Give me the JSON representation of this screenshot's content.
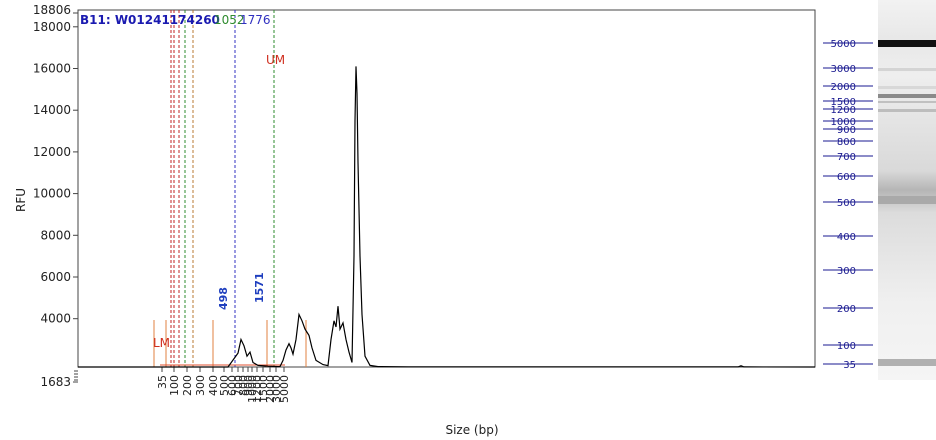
{
  "chart_data": {
    "type": "line",
    "sample_title": "B11: W01241174260",
    "ylabel": "RFU",
    "xlabel": "Size (bp)",
    "ylim": [
      1683,
      18806
    ],
    "yticks": [
      4000,
      6000,
      8000,
      10000,
      12000,
      14000,
      16000,
      18000
    ],
    "ylim_labels": [
      "1683",
      "18806"
    ],
    "xticks": [
      "35",
      "100",
      "200",
      "300",
      "400",
      "500",
      "600",
      "700",
      "800",
      "900",
      "1000",
      "1200",
      "1500",
      "2000",
      "3000",
      "5000"
    ],
    "size_markers": [
      {
        "label": "LM",
        "color": "#d03020"
      },
      {
        "label": "UM",
        "color": "#d03020"
      }
    ],
    "region_labels": [
      {
        "text": "1052",
        "color": "#2e8b2e"
      },
      {
        "text": "1776",
        "color": "#3030c0"
      }
    ],
    "peak_labels": [
      {
        "text": "498",
        "color": "#1f3fbf"
      },
      {
        "text": "1571",
        "color": "#1f3fbf"
      }
    ],
    "ladder_bands": [
      "5000",
      "3000",
      "2000",
      "1500",
      "1200",
      "1000",
      "900",
      "800",
      "700",
      "600",
      "500",
      "400",
      "300",
      "200",
      "100",
      "35"
    ],
    "trace": [
      [
        0,
        1683
      ],
      [
        150,
        1683
      ],
      [
        160,
        2350
      ],
      [
        163,
        3000
      ],
      [
        166,
        2700
      ],
      [
        169,
        2200
      ],
      [
        172,
        2400
      ],
      [
        175,
        1900
      ],
      [
        180,
        1760
      ],
      [
        190,
        1720
      ],
      [
        200,
        1700
      ],
      [
        202,
        1705
      ],
      [
        205,
        2000
      ],
      [
        208,
        2500
      ],
      [
        211,
        2800
      ],
      [
        213,
        2600
      ],
      [
        215,
        2300
      ],
      [
        218,
        3000
      ],
      [
        221,
        4200
      ],
      [
        224,
        3900
      ],
      [
        227,
        3500
      ],
      [
        231,
        3200
      ],
      [
        234,
        2600
      ],
      [
        238,
        2000
      ],
      [
        245,
        1800
      ],
      [
        250,
        1750
      ],
      [
        253,
        3000
      ],
      [
        256,
        3900
      ],
      [
        258,
        3600
      ],
      [
        260,
        4600
      ],
      [
        262,
        3500
      ],
      [
        265,
        3800
      ],
      [
        268,
        3000
      ],
      [
        271,
        2400
      ],
      [
        274,
        1900
      ],
      [
        276,
        7000
      ],
      [
        277,
        13500
      ],
      [
        278,
        16100
      ],
      [
        279,
        14800
      ],
      [
        280,
        11500
      ],
      [
        282,
        7000
      ],
      [
        284,
        4200
      ],
      [
        287,
        2200
      ],
      [
        292,
        1760
      ],
      [
        300,
        1700
      ],
      [
        330,
        1690
      ],
      [
        660,
        1690
      ],
      [
        663,
        1740
      ],
      [
        666,
        1690
      ],
      [
        815,
        1685
      ]
    ]
  }
}
